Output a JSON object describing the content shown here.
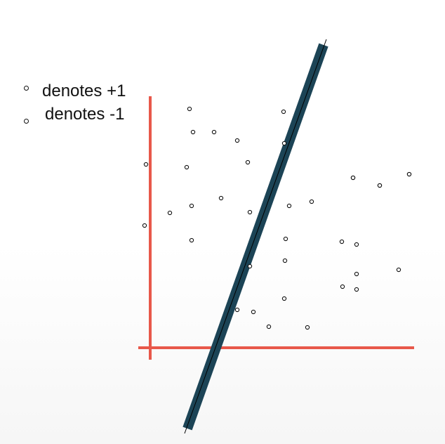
{
  "legend": {
    "positive_label": "denotes +1",
    "negative_label": "denotes -1"
  },
  "colors": {
    "axis": "#e8584a",
    "separator_outer": "#1c4456",
    "separator_inner": "#000000",
    "point_stroke": "#111111",
    "background": "#ffffff"
  },
  "points": [
    {
      "label": "+1"
    },
    {
      "label": "+1"
    },
    {
      "label": "+1"
    },
    {
      "label": "+1"
    },
    {
      "label": "+1"
    },
    {
      "label": "+1"
    },
    {
      "label": "+1"
    },
    {
      "label": "+1"
    },
    {
      "label": "+1"
    },
    {
      "label": "+1"
    },
    {
      "label": "+1"
    },
    {
      "label": "+1"
    },
    {
      "label": "+1"
    },
    {
      "label": "+1"
    },
    {
      "label": "+1"
    },
    {
      "label": "+1"
    },
    {
      "label": "+1"
    },
    {
      "label": "-1"
    },
    {
      "label": "-1"
    },
    {
      "label": "-1"
    },
    {
      "label": "-1"
    },
    {
      "label": "-1"
    },
    {
      "label": "-1"
    },
    {
      "label": "-1"
    },
    {
      "label": "-1"
    },
    {
      "label": "-1"
    },
    {
      "label": "-1"
    },
    {
      "label": "-1"
    },
    {
      "label": "-1"
    },
    {
      "label": "-1"
    },
    {
      "label": "-1"
    },
    {
      "label": "-1"
    },
    {
      "label": "-1"
    },
    {
      "label": "-1"
    },
    {
      "label": "-1"
    },
    {
      "label": "-1"
    },
    {
      "label": "-1"
    }
  ]
}
